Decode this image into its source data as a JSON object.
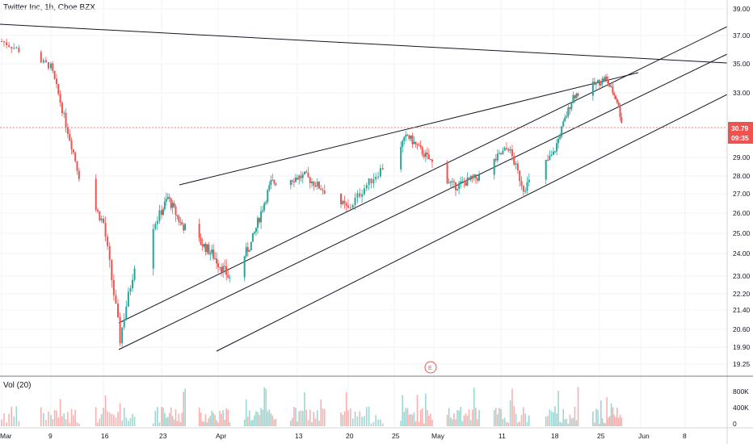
{
  "header": {
    "title": "Twitter Inc, 1h, Cboe BZX"
  },
  "volume_pane": {
    "label": "Vol (20)",
    "ticks": [
      "800K",
      "400K",
      "0"
    ]
  },
  "price_tag": {
    "value": "30.79",
    "countdown": "09:35"
  },
  "earnings_marker": {
    "label": "E"
  },
  "colors": {
    "up": "#26a69a",
    "down": "#ef5350",
    "line": "#131722",
    "grid": "#f0f3fa",
    "price_line": "#ef5350"
  },
  "chart_data": {
    "type": "candlestick",
    "symbol": "Twitter Inc",
    "interval": "1h",
    "exchange": "Cboe BZX",
    "y_ticks": [
      "39.00",
      "37.00",
      "35.00",
      "33.00",
      "30.79",
      "29.00",
      "28.00",
      "27.00",
      "26.00",
      "25.00",
      "24.00",
      "23.00",
      "22.20",
      "21.40",
      "20.60",
      "19.90",
      "19.25"
    ],
    "x_ticks": [
      "Mar",
      "9",
      "16",
      "23",
      "Apr",
      "13",
      "20",
      "25",
      "May",
      "11",
      "18",
      "25",
      "Jun",
      "8"
    ],
    "last_price": 30.79,
    "approx_close_path": [
      {
        "date": "Mar 4",
        "close": 36.6
      },
      {
        "date": "Mar 9",
        "close": 34.8
      },
      {
        "date": "Mar 11",
        "close": 31.0
      },
      {
        "date": "Mar 13",
        "close": 27.6
      },
      {
        "date": "Mar 16",
        "close": 25.5
      },
      {
        "date": "Mar 18",
        "close": 20.2
      },
      {
        "date": "Mar 20",
        "close": 24.0
      },
      {
        "date": "Mar 24",
        "close": 26.8
      },
      {
        "date": "Mar 26",
        "close": 25.5
      },
      {
        "date": "Mar 31",
        "close": 24.0
      },
      {
        "date": "Apr 3",
        "close": 22.8
      },
      {
        "date": "Apr 6",
        "close": 24.5
      },
      {
        "date": "Apr 9",
        "close": 27.6
      },
      {
        "date": "Apr 14",
        "close": 28.0
      },
      {
        "date": "Apr 20",
        "close": 26.2
      },
      {
        "date": "Apr 22",
        "close": 27.5
      },
      {
        "date": "Apr 27",
        "close": 30.3
      },
      {
        "date": "Apr 30",
        "close": 29.0
      },
      {
        "date": "May 4",
        "close": 27.4
      },
      {
        "date": "May 8",
        "close": 28.0
      },
      {
        "date": "May 12",
        "close": 29.6
      },
      {
        "date": "May 14",
        "close": 27.3
      },
      {
        "date": "May 18",
        "close": 29.2
      },
      {
        "date": "May 21",
        "close": 32.8
      },
      {
        "date": "May 26",
        "close": 34.0
      },
      {
        "date": "May 28",
        "close": 32.5
      },
      {
        "date": "May 29",
        "close": 30.79
      }
    ],
    "trendlines": 5,
    "volume_axis": [
      "0",
      "400K",
      "800K"
    ]
  }
}
